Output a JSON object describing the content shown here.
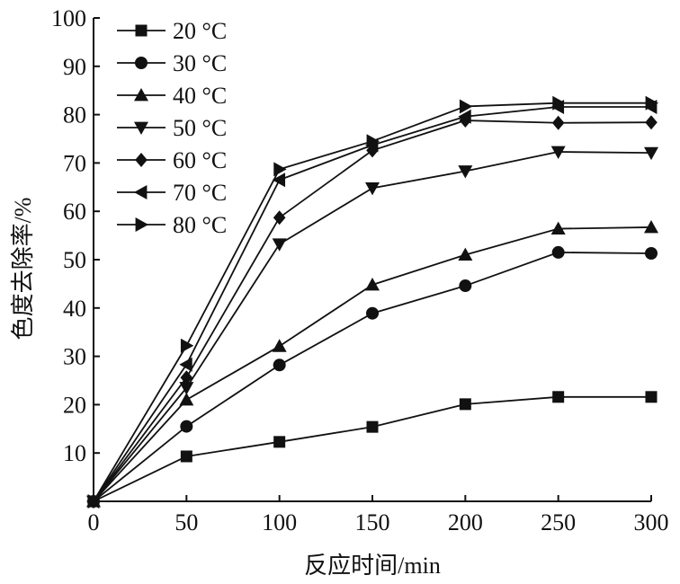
{
  "chart_data": {
    "type": "line",
    "title": "",
    "xlabel": "反应时间/min",
    "ylabel": "色度去除率/%",
    "xlim": [
      0,
      300
    ],
    "ylim": [
      0,
      100
    ],
    "x_ticks": [
      0,
      50,
      100,
      150,
      200,
      250,
      300
    ],
    "y_ticks": [
      10,
      20,
      30,
      40,
      50,
      60,
      70,
      80,
      90,
      100
    ],
    "grid": false,
    "legend_position": "top-left",
    "x": [
      0,
      50,
      100,
      150,
      200,
      250,
      300
    ],
    "series": [
      {
        "name": "20 °C",
        "marker": "square",
        "values": [
          0,
          9.3,
          12.3,
          15.4,
          20.1,
          21.6,
          21.6
        ]
      },
      {
        "name": "30 °C",
        "marker": "circle",
        "values": [
          0,
          15.5,
          28.2,
          38.9,
          44.6,
          51.5,
          51.3
        ]
      },
      {
        "name": "40 °C",
        "marker": "triangle-up",
        "values": [
          0,
          21.0,
          32.1,
          44.8,
          51.0,
          56.4,
          56.7
        ]
      },
      {
        "name": "50 °C",
        "marker": "triangle-down",
        "values": [
          0,
          23.5,
          53.2,
          64.8,
          68.3,
          72.3,
          72.1
        ]
      },
      {
        "name": "60 °C",
        "marker": "diamond",
        "values": [
          0,
          25.6,
          58.7,
          72.6,
          78.8,
          78.3,
          78.4
        ]
      },
      {
        "name": "70 °C",
        "marker": "triangle-left",
        "values": [
          0,
          28.3,
          66.5,
          73.7,
          79.6,
          81.6,
          81.6
        ]
      },
      {
        "name": "80 °C",
        "marker": "triangle-right",
        "values": [
          0,
          32.2,
          68.7,
          74.5,
          81.7,
          82.4,
          82.4
        ]
      }
    ],
    "colors": {
      "line": "#111111",
      "marker": "#111111",
      "axis": "#111111"
    }
  }
}
